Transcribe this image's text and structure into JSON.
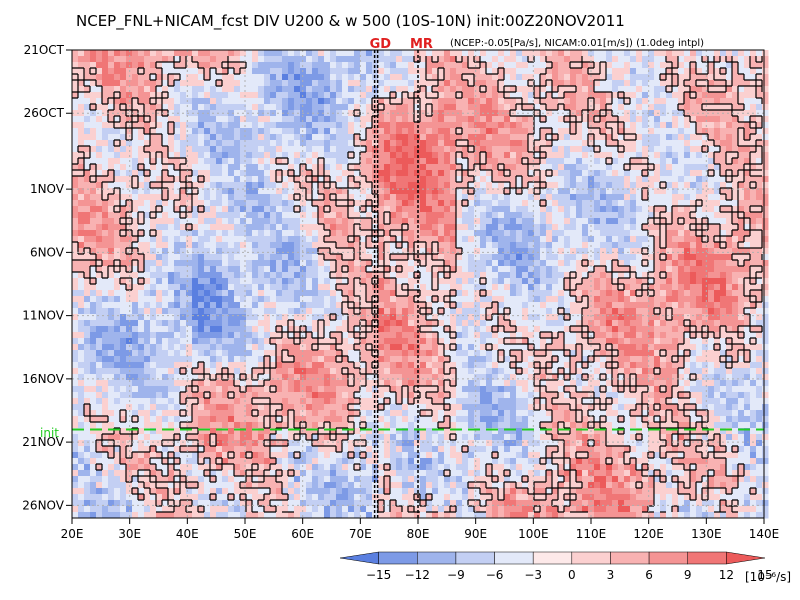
{
  "chart_data": {
    "type": "heatmap",
    "title": "NCEP_FNL+NICAM_fcst DIV U200 & w 500 (10S-10N) init:00Z20NOV2011",
    "subtitle": "(NCEP:-0.05[Pa/s], NICAM:0.01[m/s]) (1.0deg intpl)",
    "markers": [
      {
        "label": "GD",
        "lon": 73
      },
      {
        "label": "MR",
        "lon": 80
      }
    ],
    "init_label": "init",
    "init_date": "20NOV",
    "x_axis": {
      "range": [
        20,
        140
      ],
      "ticks": [
        {
          "value": 20,
          "label": "20E"
        },
        {
          "value": 30,
          "label": "30E"
        },
        {
          "value": 40,
          "label": "40E"
        },
        {
          "value": 50,
          "label": "50E"
        },
        {
          "value": 60,
          "label": "60E"
        },
        {
          "value": 70,
          "label": "70E"
        },
        {
          "value": 80,
          "label": "80E"
        },
        {
          "value": 90,
          "label": "90E"
        },
        {
          "value": 100,
          "label": "100E"
        },
        {
          "value": 110,
          "label": "110E"
        },
        {
          "value": 120,
          "label": "120E"
        },
        {
          "value": 130,
          "label": "130E"
        },
        {
          "value": 140,
          "label": "140E"
        }
      ]
    },
    "y_axis": {
      "range": [
        "21OCT",
        "27NOV"
      ],
      "direction": "time-increasing-downward",
      "ticks": [
        {
          "value": "21OCT",
          "label": "21OCT"
        },
        {
          "value": "26OCT",
          "label": "26OCT"
        },
        {
          "value": "1NOV",
          "label": "1NOV"
        },
        {
          "value": "6NOV",
          "label": "6NOV"
        },
        {
          "value": "11NOV",
          "label": "11NOV"
        },
        {
          "value": "16NOV",
          "label": "16NOV"
        },
        {
          "value": "21NOV",
          "label": "21NOV"
        },
        {
          "value": "26NOV",
          "label": "26NOV"
        }
      ]
    },
    "colorbar": {
      "levels": [
        -15,
        -12,
        -9,
        -6,
        -3,
        0,
        3,
        6,
        9,
        12,
        15
      ],
      "labels": [
        "−15",
        "−12",
        "−9",
        "−6",
        "−3",
        "0",
        "3",
        "6",
        "9",
        "12",
        "15"
      ],
      "units": "[10⁻⁶/s]",
      "colors": [
        "#5a7fe0",
        "#7d9ae6",
        "#9fb4ec",
        "#c3cff3",
        "#e3e9f9",
        "#fde9e9",
        "#fbd0d0",
        "#f8b2b2",
        "#f49494",
        "#f07676",
        "#ec5a5a"
      ]
    },
    "grid": true,
    "contours": "black contours of w 500 (ascent)",
    "colors": {
      "init_line": "#22cc22",
      "marker_text": "#e02020",
      "contour": "#000000"
    }
  }
}
